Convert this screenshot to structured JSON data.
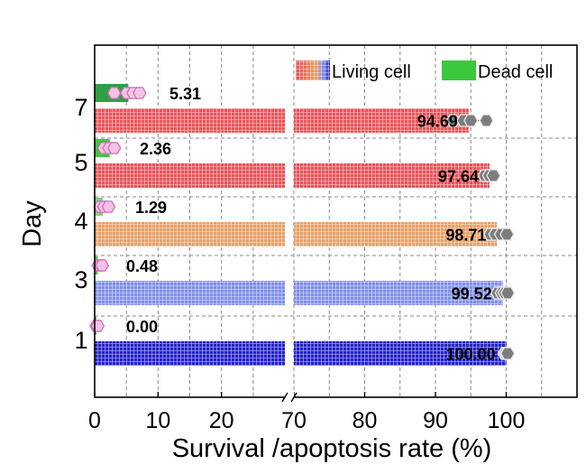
{
  "chart_data": {
    "type": "bar",
    "orientation": "horizontal",
    "broken_x_axis": true,
    "xlabel": "Survival /apoptosis rate (%)",
    "ylabel": "Day",
    "x_segments": [
      {
        "range": [
          0,
          30
        ],
        "ticks": [
          0,
          10,
          20
        ]
      },
      {
        "range": [
          70,
          110
        ],
        "ticks": [
          70,
          80,
          90,
          100
        ]
      }
    ],
    "grid": true,
    "legend": {
      "position": "top-right",
      "entries": [
        {
          "label": "Living cell",
          "series": "living"
        },
        {
          "label": "Dead cell",
          "series": "dead"
        }
      ]
    },
    "categories": [
      "7",
      "5",
      "4",
      "3",
      "1"
    ],
    "series": [
      {
        "name": "Living cell",
        "key": "living",
        "values": [
          94.69,
          97.64,
          98.71,
          99.52,
          100.0
        ],
        "labels": [
          "94.69",
          "97.64",
          "98.71",
          "99.52",
          "100.00"
        ],
        "colors": [
          "#e8545a",
          "#e8545a",
          "#e8a066",
          "#7f8fe8",
          "#2424c8"
        ],
        "replicates": [
          [
            92.5,
            94.0,
            95.0,
            97.2
          ],
          [
            97.0,
            97.6,
            98.2
          ],
          [
            97.8,
            98.5,
            99.3,
            100.1
          ],
          [
            98.8,
            99.4,
            99.8,
            100.2
          ],
          [
            99.8,
            100.0,
            100.2
          ]
        ]
      },
      {
        "name": "Dead cell",
        "key": "dead",
        "values": [
          5.31,
          2.36,
          1.29,
          0.48,
          0.0
        ],
        "labels": [
          "5.31",
          "2.36",
          "1.29",
          "0.48",
          "0.00"
        ],
        "colors": [
          "#2ea043",
          "#3cc73c",
          "#6fd96f",
          "#3cc73c",
          "#3cc73c"
        ],
        "replicates": [
          [
            2.8,
            4.8,
            5.8,
            6.8
          ],
          [
            1.2,
            2.0,
            2.8
          ],
          [
            0.6,
            1.2,
            1.9
          ],
          [
            0.3,
            0.6,
            0.9
          ],
          [
            0.0,
            0.2
          ]
        ]
      }
    ]
  }
}
